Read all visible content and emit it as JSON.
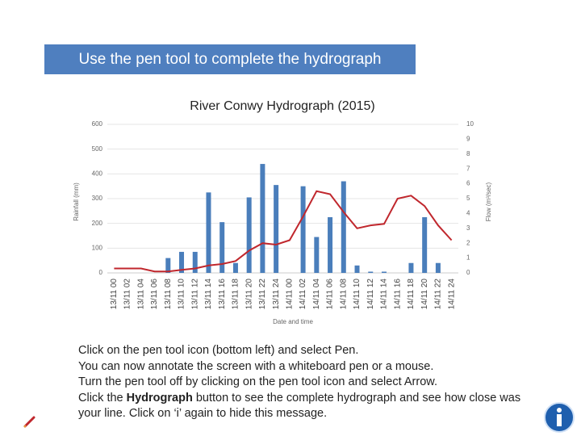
{
  "header": {
    "title": "Use the pen tool to complete the hydrograph"
  },
  "chart_data": {
    "type": "bar-line",
    "title": "River Conwy Hydrograph (2015)",
    "x_label": "Date and time",
    "y_label": "Rainfall (mm)",
    "y2_label": "Flow (m³/sec)",
    "categories": [
      "13/11 00",
      "13/11 02",
      "13/11 04",
      "13/11 06",
      "13/11 08",
      "13/11 10",
      "13/11 12",
      "13/11 14",
      "13/11 16",
      "13/11 18",
      "13/11 20",
      "13/11 22",
      "13/11 24",
      "14/11 00",
      "14/11 02",
      "14/11 04",
      "14/11 06",
      "14/11 08",
      "14/11 10",
      "14/11 12",
      "14/11 14",
      "14/11 16",
      "14/11 18",
      "14/11 20",
      "14/11 22",
      "14/11 24"
    ],
    "series": [
      {
        "type": "bar",
        "color": "#4a7ebb",
        "values": [
          0,
          0,
          0,
          0,
          60,
          85,
          85,
          325,
          205,
          40,
          305,
          440,
          355,
          0,
          350,
          145,
          225,
          370,
          30,
          5,
          5,
          0,
          40,
          225,
          40,
          0
        ]
      },
      {
        "type": "line",
        "color": "#c0272d",
        "axis": "y2",
        "values": [
          0.3,
          0.3,
          0.3,
          0.1,
          0.1,
          0.2,
          0.3,
          0.5,
          0.6,
          0.8,
          1.5,
          2.0,
          1.9,
          2.2,
          3.8,
          5.5,
          5.3,
          4.1,
          3.0,
          3.2,
          3.3,
          5.0,
          5.2,
          4.5,
          3.2,
          2.2
        ]
      }
    ],
    "ylim": [
      0,
      600
    ],
    "yticks": [
      0,
      100,
      200,
      300,
      400,
      500,
      600
    ],
    "y2lim": [
      0,
      10
    ],
    "y2ticks": [
      0,
      1,
      2,
      3,
      4,
      5,
      6,
      7,
      8,
      9,
      10
    ],
    "grid": true
  },
  "instructions": {
    "line0": [
      "Click on the pen tool icon (bottom left) and select ",
      "Pen",
      "."
    ],
    "line1": "You can now annotate the screen with a whiteboard pen or a mouse.",
    "line2": [
      "Turn the pen tool off by clicking on the pen tool icon and select ",
      "Arrow",
      "."
    ],
    "line3": [
      "Click the ",
      "Hydrograph",
      " button to see the complete hydrograph and see how close was your line.  Click on ‘i’ again to hide this message."
    ]
  }
}
